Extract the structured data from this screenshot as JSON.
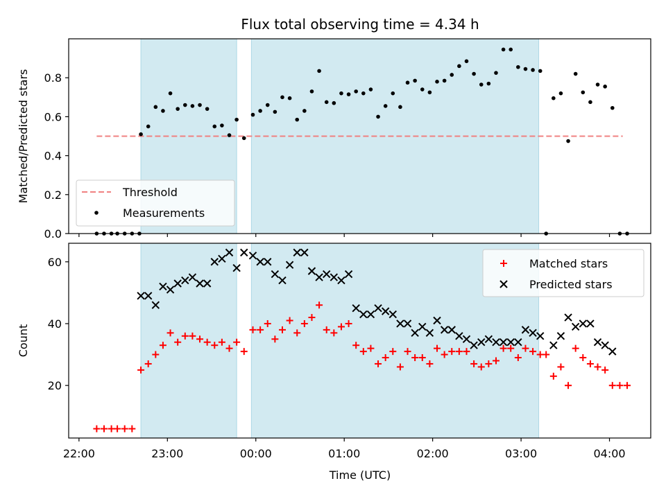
{
  "title": "Flux total observing time = 4.34 h",
  "xlabel": "Time (UTC)",
  "colors": {
    "threshold": "#f08080",
    "measurements": "#000000",
    "matched": "#ff0000",
    "predicted": "#000000",
    "shade": "#add8e6"
  },
  "chart_data": [
    {
      "type": "scatter",
      "ylabel": "Matched/Predicted stars",
      "ylim": [
        0,
        1.0
      ],
      "xlim": [
        "21:53",
        "04:28"
      ],
      "yticks": [
        0.0,
        0.2,
        0.4,
        0.6,
        0.8
      ],
      "ytick_labels": [
        "0.0",
        "0.2",
        "0.4",
        "0.6",
        "0.8"
      ],
      "xticks": [
        "22:00",
        "23:00",
        "00:00",
        "01:00",
        "02:00",
        "03:00",
        "04:00"
      ],
      "shaded_intervals": [
        [
          "22:42",
          "23:47"
        ],
        [
          "23:57",
          "03:12"
        ]
      ],
      "legend": {
        "position": "lower left",
        "entries": [
          "Threshold",
          "Measurements"
        ]
      },
      "threshold": {
        "name": "Threshold",
        "value": 0.5,
        "x_range": [
          "22:12",
          "04:09"
        ]
      },
      "series": [
        {
          "name": "Measurements",
          "marker": "dot",
          "points": [
            [
              "22:12",
              0.0
            ],
            [
              "22:17",
              0.0
            ],
            [
              "22:22",
              0.0
            ],
            [
              "22:26",
              0.0
            ],
            [
              "22:31",
              0.0
            ],
            [
              "22:36",
              0.0
            ],
            [
              "22:41",
              0.0
            ],
            [
              "22:42",
              0.51
            ],
            [
              "22:47",
              0.55
            ],
            [
              "22:52",
              0.65
            ],
            [
              "22:57",
              0.63
            ],
            [
              "23:02",
              0.72
            ],
            [
              "23:07",
              0.64
            ],
            [
              "23:12",
              0.66
            ],
            [
              "23:17",
              0.655
            ],
            [
              "23:22",
              0.66
            ],
            [
              "23:27",
              0.64
            ],
            [
              "23:32",
              0.55
            ],
            [
              "23:37",
              0.555
            ],
            [
              "23:42",
              0.505
            ],
            [
              "23:47",
              0.585
            ],
            [
              "23:52",
              0.49
            ],
            [
              "23:58",
              0.61
            ],
            [
              "00:03",
              0.63
            ],
            [
              "00:08",
              0.66
            ],
            [
              "00:13",
              0.625
            ],
            [
              "00:18",
              0.7
            ],
            [
              "00:23",
              0.695
            ],
            [
              "00:28",
              0.585
            ],
            [
              "00:33",
              0.63
            ],
            [
              "00:38",
              0.73
            ],
            [
              "00:43",
              0.835
            ],
            [
              "00:48",
              0.675
            ],
            [
              "00:53",
              0.67
            ],
            [
              "00:58",
              0.72
            ],
            [
              "01:03",
              0.715
            ],
            [
              "01:08",
              0.73
            ],
            [
              "01:13",
              0.72
            ],
            [
              "01:18",
              0.74
            ],
            [
              "01:23",
              0.6
            ],
            [
              "01:28",
              0.655
            ],
            [
              "01:33",
              0.72
            ],
            [
              "01:38",
              0.65
            ],
            [
              "01:43",
              0.775
            ],
            [
              "01:48",
              0.785
            ],
            [
              "01:53",
              0.74
            ],
            [
              "01:58",
              0.725
            ],
            [
              "02:03",
              0.78
            ],
            [
              "02:08",
              0.785
            ],
            [
              "02:13",
              0.815
            ],
            [
              "02:18",
              0.86
            ],
            [
              "02:23",
              0.885
            ],
            [
              "02:28",
              0.82
            ],
            [
              "02:33",
              0.765
            ],
            [
              "02:38",
              0.77
            ],
            [
              "02:43",
              0.825
            ],
            [
              "02:48",
              0.945
            ],
            [
              "02:53",
              0.945
            ],
            [
              "02:58",
              0.855
            ],
            [
              "03:03",
              0.845
            ],
            [
              "03:08",
              0.84
            ],
            [
              "03:13",
              0.835
            ],
            [
              "03:17",
              0.0
            ],
            [
              "03:22",
              0.695
            ],
            [
              "03:27",
              0.72
            ],
            [
              "03:32",
              0.475
            ],
            [
              "03:37",
              0.82
            ],
            [
              "03:42",
              0.725
            ],
            [
              "03:47",
              0.675
            ],
            [
              "03:52",
              0.765
            ],
            [
              "03:57",
              0.755
            ],
            [
              "04:02",
              0.645
            ],
            [
              "04:07",
              0.0
            ],
            [
              "04:12",
              0.0
            ]
          ]
        }
      ]
    },
    {
      "type": "scatter",
      "ylabel": "Count",
      "ylim": [
        3,
        66
      ],
      "xlim": [
        "21:53",
        "04:28"
      ],
      "yticks": [
        20,
        40,
        60
      ],
      "ytick_labels": [
        "20",
        "40",
        "60"
      ],
      "xticks": [
        "22:00",
        "23:00",
        "00:00",
        "01:00",
        "02:00",
        "03:00",
        "04:00"
      ],
      "xtick_labels": [
        "22:00",
        "23:00",
        "00:00",
        "01:00",
        "02:00",
        "03:00",
        "04:00"
      ],
      "shaded_intervals": [
        [
          "22:42",
          "23:47"
        ],
        [
          "23:57",
          "03:12"
        ]
      ],
      "legend": {
        "position": "upper right",
        "entries": [
          "Matched stars",
          "Predicted stars"
        ]
      },
      "series": [
        {
          "name": "Matched stars",
          "marker": "plus",
          "points": [
            [
              "22:12",
              6
            ],
            [
              "22:17",
              6
            ],
            [
              "22:22",
              6
            ],
            [
              "22:26",
              6
            ],
            [
              "22:31",
              6
            ],
            [
              "22:36",
              6
            ],
            [
              "22:42",
              25
            ],
            [
              "22:47",
              27
            ],
            [
              "22:52",
              30
            ],
            [
              "22:57",
              33
            ],
            [
              "23:02",
              37
            ],
            [
              "23:07",
              34
            ],
            [
              "23:12",
              36
            ],
            [
              "23:17",
              36
            ],
            [
              "23:22",
              35
            ],
            [
              "23:27",
              34
            ],
            [
              "23:32",
              33
            ],
            [
              "23:37",
              34
            ],
            [
              "23:42",
              32
            ],
            [
              "23:47",
              34
            ],
            [
              "23:52",
              31
            ],
            [
              "23:58",
              38
            ],
            [
              "00:03",
              38
            ],
            [
              "00:08",
              40
            ],
            [
              "00:13",
              35
            ],
            [
              "00:18",
              38
            ],
            [
              "00:23",
              41
            ],
            [
              "00:28",
              37
            ],
            [
              "00:33",
              40
            ],
            [
              "00:38",
              42
            ],
            [
              "00:43",
              46
            ],
            [
              "00:48",
              38
            ],
            [
              "00:53",
              37
            ],
            [
              "00:58",
              39
            ],
            [
              "01:03",
              40
            ],
            [
              "01:08",
              33
            ],
            [
              "01:13",
              31
            ],
            [
              "01:18",
              32
            ],
            [
              "01:23",
              27
            ],
            [
              "01:28",
              29
            ],
            [
              "01:33",
              31
            ],
            [
              "01:38",
              26
            ],
            [
              "01:43",
              31
            ],
            [
              "01:48",
              29
            ],
            [
              "01:53",
              29
            ],
            [
              "01:58",
              27
            ],
            [
              "02:03",
              32
            ],
            [
              "02:08",
              30
            ],
            [
              "02:13",
              31
            ],
            [
              "02:18",
              31
            ],
            [
              "02:23",
              31
            ],
            [
              "02:28",
              27
            ],
            [
              "02:33",
              26
            ],
            [
              "02:38",
              27
            ],
            [
              "02:43",
              28
            ],
            [
              "02:48",
              32
            ],
            [
              "02:53",
              32
            ],
            [
              "02:58",
              29
            ],
            [
              "03:03",
              32
            ],
            [
              "03:08",
              31
            ],
            [
              "03:13",
              30
            ],
            [
              "03:17",
              30
            ],
            [
              "03:22",
              23
            ],
            [
              "03:27",
              26
            ],
            [
              "03:32",
              20
            ],
            [
              "03:37",
              32
            ],
            [
              "03:42",
              29
            ],
            [
              "03:47",
              27
            ],
            [
              "03:52",
              26
            ],
            [
              "03:57",
              25
            ],
            [
              "04:02",
              20
            ],
            [
              "04:07",
              20
            ],
            [
              "04:12",
              20
            ]
          ]
        },
        {
          "name": "Predicted stars",
          "marker": "x",
          "points": [
            [
              "22:42",
              49
            ],
            [
              "22:47",
              49
            ],
            [
              "22:52",
              46
            ],
            [
              "22:57",
              52
            ],
            [
              "23:02",
              51
            ],
            [
              "23:07",
              53
            ],
            [
              "23:12",
              54
            ],
            [
              "23:17",
              55
            ],
            [
              "23:22",
              53
            ],
            [
              "23:27",
              53
            ],
            [
              "23:32",
              60
            ],
            [
              "23:37",
              61
            ],
            [
              "23:42",
              63
            ],
            [
              "23:47",
              58
            ],
            [
              "23:52",
              63
            ],
            [
              "23:58",
              62
            ],
            [
              "00:03",
              60
            ],
            [
              "00:08",
              60
            ],
            [
              "00:13",
              56
            ],
            [
              "00:18",
              54
            ],
            [
              "00:23",
              59
            ],
            [
              "00:28",
              63
            ],
            [
              "00:33",
              63
            ],
            [
              "00:38",
              57
            ],
            [
              "00:43",
              55
            ],
            [
              "00:48",
              56
            ],
            [
              "00:53",
              55
            ],
            [
              "00:58",
              54
            ],
            [
              "01:03",
              56
            ],
            [
              "01:08",
              45
            ],
            [
              "01:13",
              43
            ],
            [
              "01:18",
              43
            ],
            [
              "01:23",
              45
            ],
            [
              "01:28",
              44
            ],
            [
              "01:33",
              43
            ],
            [
              "01:38",
              40
            ],
            [
              "01:43",
              40
            ],
            [
              "01:48",
              37
            ],
            [
              "01:53",
              39
            ],
            [
              "01:58",
              37
            ],
            [
              "02:03",
              41
            ],
            [
              "02:08",
              38
            ],
            [
              "02:13",
              38
            ],
            [
              "02:18",
              36
            ],
            [
              "02:23",
              35
            ],
            [
              "02:28",
              33
            ],
            [
              "02:33",
              34
            ],
            [
              "02:38",
              35
            ],
            [
              "02:43",
              34
            ],
            [
              "02:48",
              34
            ],
            [
              "02:53",
              34
            ],
            [
              "02:58",
              34
            ],
            [
              "03:03",
              38
            ],
            [
              "03:08",
              37
            ],
            [
              "03:13",
              36
            ],
            [
              "03:22",
              33
            ],
            [
              "03:27",
              36
            ],
            [
              "03:32",
              42
            ],
            [
              "03:37",
              39
            ],
            [
              "03:42",
              40
            ],
            [
              "03:47",
              40
            ],
            [
              "03:52",
              34
            ],
            [
              "03:57",
              33
            ],
            [
              "04:02",
              31
            ]
          ]
        }
      ]
    }
  ]
}
